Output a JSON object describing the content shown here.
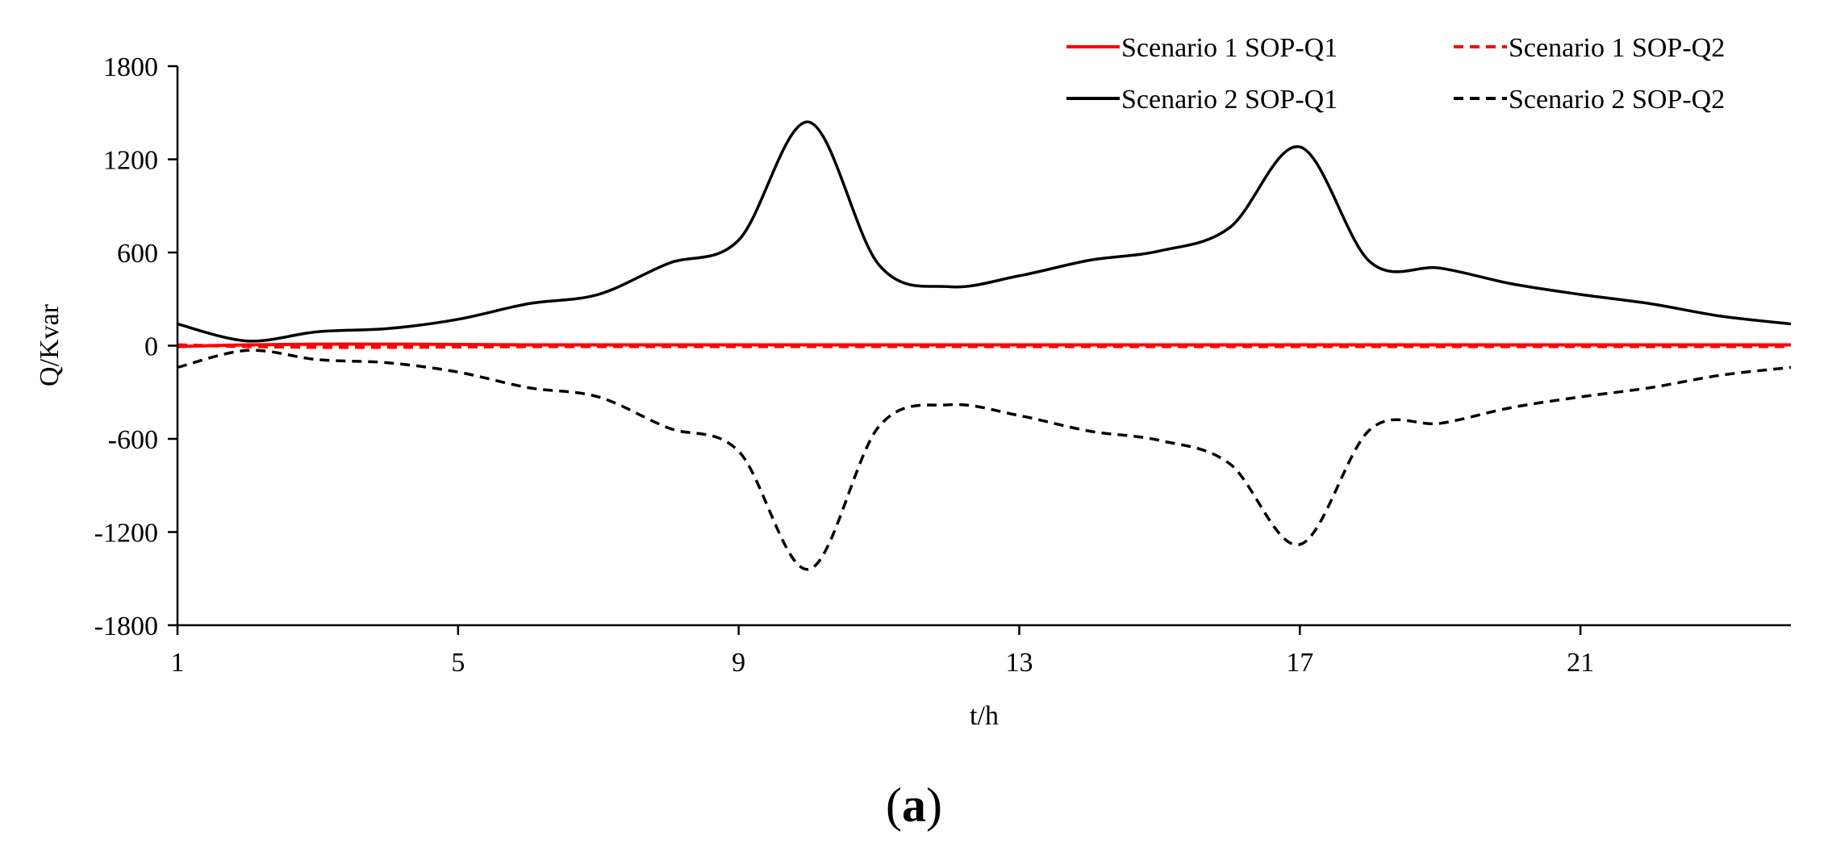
{
  "chart_data": {
    "type": "line",
    "xlabel": "t/h",
    "ylabel": "Q/Kvar",
    "panel_label": {
      "open": "(",
      "letter": "a",
      "close": ")"
    },
    "xlim": [
      1,
      24
    ],
    "ylim": [
      -1800,
      1800
    ],
    "xticks": [
      1,
      5,
      9,
      13,
      17,
      21
    ],
    "yticks": [
      1800,
      1200,
      600,
      0,
      -600,
      -1200,
      -1800
    ],
    "grid": false,
    "legend_position": "top-right",
    "x": [
      1,
      2,
      3,
      4,
      5,
      6,
      7,
      8,
      9,
      10,
      11,
      12,
      13,
      14,
      15,
      16,
      17,
      18,
      19,
      20,
      21,
      22,
      23,
      24
    ],
    "series": [
      {
        "name": "Scenario 1 SOP-Q1",
        "color": "#ff0000",
        "dash": "solid",
        "values": [
          -5,
          5,
          10,
          10,
          8,
          5,
          5,
          5,
          5,
          5,
          5,
          5,
          5,
          5,
          5,
          5,
          5,
          5,
          5,
          5,
          5,
          5,
          5,
          5
        ]
      },
      {
        "name": "Scenario 1 SOP-Q2",
        "color": "#ff0000",
        "dash": "dashed",
        "values": [
          5,
          -5,
          -10,
          -10,
          -8,
          -5,
          -5,
          -5,
          -5,
          -5,
          -5,
          -5,
          -5,
          -5,
          -5,
          -5,
          -5,
          -5,
          -5,
          -5,
          -5,
          -5,
          -5,
          -5
        ]
      },
      {
        "name": "Scenario 2 SOP-Q1",
        "color": "#000000",
        "dash": "solid",
        "values": [
          140,
          30,
          90,
          110,
          170,
          270,
          330,
          530,
          680,
          1440,
          520,
          380,
          450,
          550,
          610,
          760,
          1280,
          540,
          500,
          400,
          330,
          270,
          190,
          140
        ]
      },
      {
        "name": "Scenario 2 SOP-Q2",
        "color": "#000000",
        "dash": "dashed",
        "values": [
          -140,
          -30,
          -90,
          -110,
          -170,
          -270,
          -330,
          -530,
          -680,
          -1440,
          -520,
          -380,
          -450,
          -550,
          -610,
          -760,
          -1280,
          -540,
          -500,
          -400,
          -330,
          -270,
          -190,
          -140
        ]
      }
    ]
  }
}
